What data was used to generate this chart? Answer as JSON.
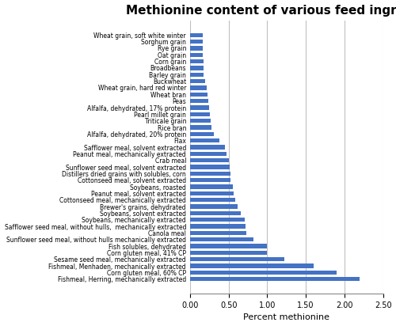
{
  "title": "Methionine content of various feed ingredients",
  "xlabel": "Percent methionine",
  "categories": [
    "Wheat grain, soft white winter",
    "Sorghum grain",
    "Rye grain",
    "Oat grain",
    "Corn grain",
    "Broadbeans",
    "Barley grain",
    "Buckwheat",
    "Wheat grain, hard red winter",
    "Wheat bran",
    "Peas",
    "Alfalfa, dehydrated, 17% protein",
    "Pearl millet grain",
    "Triticale grain",
    "Rice bran",
    "Alfalfa, dehydrated, 20% protein",
    "Flax",
    "Safflower meal, solvent extracted",
    "Peanut meal, mechanically extracted",
    "Crab meal",
    "Sunflower seed meal, solvent extracted",
    "Distillers dried grains with solubles, corn",
    "Cottonseed meal, solvent extracted",
    "Soybeans, roasted",
    "Peanut meal, solvent extracted",
    "Cottonseed meal, mechanically extracted",
    "Brewer's grains, dehydrated",
    "Soybeans, solvent extracted",
    "Soybeans, mechanically extracted",
    "Safflower seed meal, without hulls,  mechanically extracted",
    "Canola meal",
    "Sunflower seed meal, without hulls mechanically extracted",
    "Fish solubles, dehydrated",
    "Corn gluten meal, 41% CP",
    "Sesame seed meal, mechanically extracted",
    "Fishmeal, Menhaden, mechanically extracted",
    "Corn gluten meal, 60% CP",
    "Fishmeal, Herring, mechanically extracted"
  ],
  "values": [
    0.16,
    0.16,
    0.17,
    0.17,
    0.18,
    0.18,
    0.18,
    0.2,
    0.22,
    0.23,
    0.24,
    0.25,
    0.26,
    0.27,
    0.28,
    0.31,
    0.38,
    0.45,
    0.47,
    0.5,
    0.51,
    0.52,
    0.52,
    0.55,
    0.57,
    0.59,
    0.62,
    0.66,
    0.71,
    0.72,
    0.73,
    0.82,
    1.0,
    1.0,
    1.22,
    1.6,
    1.9,
    2.2
  ],
  "bar_color": "#4472C4",
  "xlim": [
    0,
    2.5
  ],
  "xticks": [
    0.0,
    0.5,
    1.0,
    1.5,
    2.0,
    2.5
  ],
  "grid_color": "#C0C0C0",
  "bg_color": "#FFFFFF",
  "fig_bg_color": "#FFFFFF",
  "title_fontsize": 11,
  "label_fontsize": 5.5,
  "axis_label_fontsize": 8
}
